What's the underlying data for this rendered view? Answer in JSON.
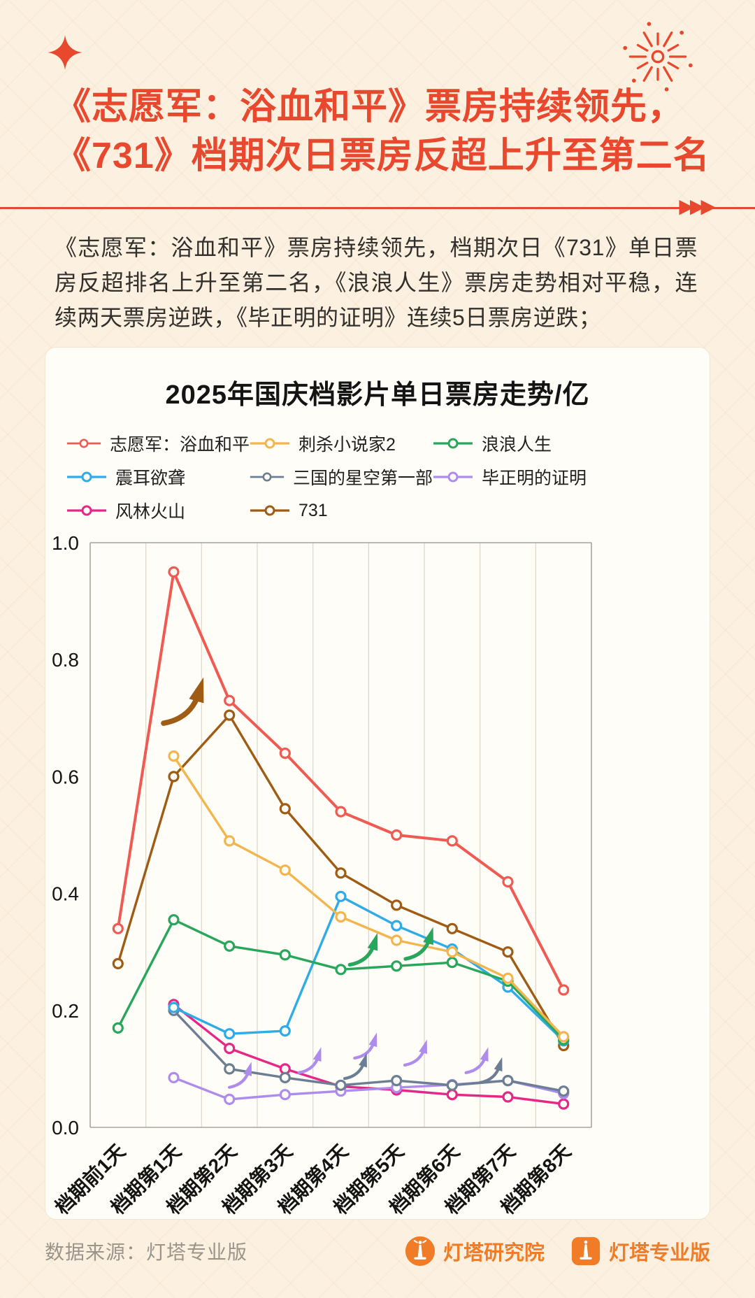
{
  "header": {
    "title_line1": "《志愿军：浴血和平》票房持续领先，",
    "title_line2": "《731》档期次日票房反超上升至第二名",
    "divider_arrows": "▶▶▶",
    "paragraph": "《志愿军：浴血和平》票房持续领先，档期次日《731》单日票房反超排名上升至第二名，《浪浪人生》票房走势相对平稳，连续两天票房逆跌，《毕正明的证明》连续5日票房逆跌；"
  },
  "footer": {
    "source": "数据来源：灯塔专业版",
    "logo1": "灯塔研究院",
    "logo2": "灯塔专业版"
  },
  "colors": {
    "background": "#fcf0e0",
    "accent_red": "#e8492e",
    "card": "#fffdf7",
    "body_text": "#32302c",
    "logo_orange": "#f07c28",
    "grid": "#ddd6c9",
    "plot_border": "#a9a49a"
  },
  "icons": {
    "sparkle-icon": "✦ four-point star",
    "fireworks-icon": "❂ radial firework burst",
    "divider-arrows-icon": "▶▶▶",
    "legend-marker-icon": "—○— line with hollow circle",
    "lighthouse-badge-icon": "orange circle with white lighthouse",
    "lighthouse-app-icon": "orange rounded square with white lighthouse",
    "trend-arrow-icon": "curved up-right arrow marking 逆跌"
  },
  "chart_data": {
    "type": "line",
    "title": "2025年国庆档影片单日票房走势/亿",
    "unit": "亿",
    "categories": [
      "档期前1天",
      "档期第1天",
      "档期第2天",
      "档期第3天",
      "档期第4天",
      "档期第5天",
      "档期第6天",
      "档期第7天",
      "档期第8天"
    ],
    "y_ticks": [
      0.0,
      0.2,
      0.4,
      0.6,
      0.8,
      1.0
    ],
    "ylim": [
      0,
      1.0
    ],
    "grid": "vertical",
    "legend_position": "top-left",
    "marker": "hollow-circle",
    "series": [
      {
        "name": "志愿军：浴血和平",
        "color": "#ef5b52",
        "values": [
          0.34,
          0.95,
          0.73,
          0.64,
          0.54,
          0.5,
          0.49,
          0.42,
          0.235
        ]
      },
      {
        "name": "刺杀小说家2",
        "color": "#f3b64e",
        "values": [
          null,
          0.635,
          0.49,
          0.44,
          0.36,
          0.32,
          0.3,
          0.255,
          0.155
        ]
      },
      {
        "name": "浪浪人生",
        "color": "#27a65c",
        "values": [
          0.17,
          0.355,
          0.31,
          0.295,
          0.27,
          0.276,
          0.282,
          0.25,
          0.15
        ]
      },
      {
        "name": "震耳欲聋",
        "color": "#2fabe8",
        "values": [
          null,
          0.205,
          0.16,
          0.165,
          0.395,
          0.345,
          0.305,
          0.24,
          0.148
        ]
      },
      {
        "name": "三国的星空第一部",
        "color": "#6b7e93",
        "values": [
          null,
          0.2,
          0.1,
          0.085,
          0.072,
          0.08,
          0.072,
          0.08,
          0.062
        ]
      },
      {
        "name": "毕正明的证明",
        "color": "#ae8cec",
        "values": [
          null,
          0.085,
          0.048,
          0.056,
          0.062,
          0.068,
          0.073,
          0.08,
          0.058
        ]
      },
      {
        "name": "风林火山",
        "color": "#e52888",
        "values": [
          null,
          0.21,
          0.135,
          0.1,
          0.07,
          0.064,
          0.056,
          0.052,
          0.04
        ]
      },
      {
        "name": "731",
        "color": "#9e5c14",
        "values": [
          0.28,
          0.6,
          0.705,
          0.545,
          0.435,
          0.38,
          0.34,
          0.3,
          0.14
        ]
      }
    ],
    "annotations": [
      {
        "type": "arrow",
        "color": "#9e5c14",
        "x": 1.45,
        "y": 0.73,
        "scale": 1.8
      },
      {
        "type": "arrow",
        "color": "#27a65c",
        "x": 4.6,
        "y": 0.305,
        "scale": 1.25
      },
      {
        "type": "arrow",
        "color": "#27a65c",
        "x": 5.6,
        "y": 0.315,
        "scale": 1.25
      },
      {
        "type": "arrow",
        "color": "#ae8cec",
        "x": 2.35,
        "y": 0.09,
        "scale": 1
      },
      {
        "type": "arrow",
        "color": "#ae8cec",
        "x": 3.6,
        "y": 0.115,
        "scale": 1
      },
      {
        "type": "arrow",
        "color": "#ae8cec",
        "x": 4.6,
        "y": 0.14,
        "scale": 1
      },
      {
        "type": "arrow",
        "color": "#ae8cec",
        "x": 5.5,
        "y": 0.128,
        "scale": 1
      },
      {
        "type": "arrow",
        "color": "#ae8cec",
        "x": 6.6,
        "y": 0.115,
        "scale": 1
      },
      {
        "type": "arrow",
        "color": "#6b7e93",
        "x": 4.42,
        "y": 0.105,
        "scale": 1
      },
      {
        "type": "arrow",
        "color": "#6b7e93",
        "x": 6.85,
        "y": 0.098,
        "scale": 1
      }
    ]
  }
}
